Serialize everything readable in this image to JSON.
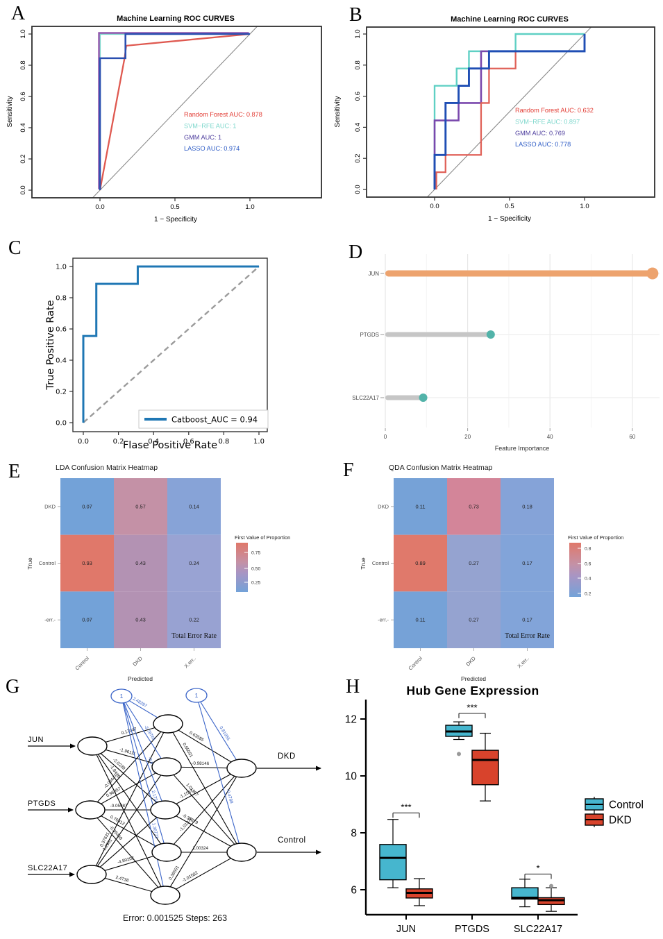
{
  "figure": {
    "background": "#ffffff"
  },
  "chart_data": [
    {
      "panel_letter": "A",
      "type": "line",
      "title": "Machine Learning ROC CURVES",
      "xlabel": "1 − Specificity",
      "ylabel": "Sensitivity",
      "xlim": [
        0,
        1
      ],
      "ylim": [
        0,
        1
      ],
      "xtick_labels": [
        "0.0",
        "0.5",
        "1.0"
      ],
      "ytick_labels": [
        "0.0",
        "0.2",
        "0.4",
        "0.6",
        "0.8",
        "1.0"
      ],
      "diagonal": "solid",
      "series": [
        {
          "name": "SVM-RFE",
          "auc": "1",
          "color": "#7ed7cc",
          "width": 2.2,
          "points": [
            [
              0,
              0
            ],
            [
              0,
              1
            ],
            [
              1,
              1
            ]
          ]
        },
        {
          "name": "GMM",
          "auc": "1",
          "color": "#9356ad",
          "width": 2.4,
          "points": [
            [
              0,
              0
            ],
            [
              0,
              1
            ],
            [
              1,
              1
            ]
          ]
        },
        {
          "name": "Random Forest",
          "auc": "0.878",
          "color": "#df5950",
          "width": 2.3,
          "points": [
            [
              0,
              0
            ],
            [
              0.165,
              0.85
            ],
            [
              0.175,
              0.925
            ],
            [
              1,
              1
            ]
          ]
        },
        {
          "name": "LASSO",
          "auc": "0.974",
          "color": "#2a4fb0",
          "width": 2.6,
          "points": [
            [
              0,
              0
            ],
            [
              0,
              0.845
            ],
            [
              0.17,
              0.845
            ],
            [
              0.17,
              1
            ],
            [
              1,
              1
            ]
          ]
        }
      ],
      "legend": [
        {
          "text": "Random Forest AUC: 0.878",
          "color": "#e23b33"
        },
        {
          "text": "SVM−RFE AUC: 1",
          "color": "#7ed7cc"
        },
        {
          "text": "GMM AUC: 1",
          "color": "#50409f"
        },
        {
          "text": "LASSO AUC: 0.974",
          "color": "#2f5dc6"
        }
      ]
    },
    {
      "panel_letter": "B",
      "type": "line",
      "title": "Machine Learning ROC CURVES",
      "xlabel": "1 − Specificity",
      "ylabel": "Sensitivity",
      "xlim": [
        0,
        1
      ],
      "ylim": [
        0,
        1
      ],
      "xtick_labels": [
        "0.0",
        "0.5",
        "1.0"
      ],
      "ytick_labels": [
        "0.0",
        "0.2",
        "0.4",
        "0.6",
        "0.8",
        "1.0"
      ],
      "diagonal": "solid",
      "series": [
        {
          "name": "SVM-RFE",
          "auc": "0.897",
          "color": "#5fd0c4",
          "width": 2.4,
          "points": [
            [
              0,
              0
            ],
            [
              0,
              0.667
            ],
            [
              0.147,
              0.667
            ],
            [
              0.147,
              0.778
            ],
            [
              0.229,
              0.778
            ],
            [
              0.229,
              0.889
            ],
            [
              0.54,
              0.889
            ],
            [
              0.54,
              1
            ],
            [
              1,
              1
            ]
          ]
        },
        {
          "name": "GMM",
          "auc": "0.769",
          "color": "#7a48ad",
          "width": 2.6,
          "points": [
            [
              0,
              0
            ],
            [
              0,
              0.444
            ],
            [
              0.16,
              0.444
            ],
            [
              0.16,
              0.556
            ],
            [
              0.31,
              0.556
            ],
            [
              0.31,
              0.889
            ],
            [
              0.38,
              0.889
            ]
          ]
        },
        {
          "name": "Random Forest",
          "auc": "0.632",
          "color": "#e06259",
          "width": 2.3,
          "points": [
            [
              0.012,
              0
            ],
            [
              0.012,
              0.111
            ],
            [
              0.073,
              0.111
            ],
            [
              0.073,
              0.222
            ],
            [
              0.31,
              0.222
            ],
            [
              0.31,
              0.556
            ],
            [
              0.363,
              0.556
            ],
            [
              0.363,
              0.778
            ],
            [
              0.54,
              0.778
            ],
            [
              0.54,
              0.889
            ],
            [
              1,
              0.889
            ]
          ]
        },
        {
          "name": "LASSO",
          "auc": "0.778",
          "color": "#1f4eb4",
          "width": 2.9,
          "points": [
            [
              0,
              0
            ],
            [
              0,
              0.222
            ],
            [
              0.073,
              0.222
            ],
            [
              0.073,
              0.556
            ],
            [
              0.16,
              0.556
            ],
            [
              0.16,
              0.667
            ],
            [
              0.229,
              0.667
            ],
            [
              0.229,
              0.778
            ],
            [
              0.363,
              0.778
            ],
            [
              0.363,
              0.889
            ],
            [
              1,
              0.889
            ],
            [
              1,
              1
            ]
          ]
        }
      ],
      "legend": [
        {
          "text": "Random Forest AUC: 0.632",
          "color": "#e23b33"
        },
        {
          "text": "SVM−RFE AUC: 0.897",
          "color": "#7ed7cc"
        },
        {
          "text": "GMM AUC: 0.769",
          "color": "#50409f"
        },
        {
          "text": "LASSO AUC: 0.778",
          "color": "#2f5dc6"
        }
      ]
    },
    {
      "panel_letter": "C",
      "type": "line",
      "title": "",
      "xlabel": "Flase  Positive Rate",
      "ylabel": "True  Positive Rate",
      "xlim": [
        0,
        1
      ],
      "ylim": [
        0,
        1
      ],
      "xtick_labels": [
        "0.0",
        "0.2",
        "0.4",
        "0.6",
        "0.8",
        "1.0"
      ],
      "ytick_labels": [
        "0.0",
        "0.2",
        "0.4",
        "0.6",
        "0.8",
        "1.0"
      ],
      "diagonal": "dashed",
      "series": [
        {
          "name": "Catboost",
          "auc": "0.94",
          "color": "#1f77b4",
          "width": 3,
          "points": [
            [
              0,
              0
            ],
            [
              0,
              0.555
            ],
            [
              0.074,
              0.555
            ],
            [
              0.074,
              0.889
            ],
            [
              0.31,
              0.889
            ],
            [
              0.31,
              1
            ],
            [
              1,
              1
            ]
          ]
        }
      ],
      "legend_label": "Catboost_AUC = 0.94"
    },
    {
      "panel_letter": "D",
      "type": "lollipop",
      "categories": [
        "JUN",
        "PTGDS",
        "SLC22A17"
      ],
      "values": [
        64.9,
        25.6,
        9.2
      ],
      "dot_colors": [
        "#eda36e",
        "#52b3a9",
        "#52b3a9"
      ],
      "bar_colors": [
        "#eda36e",
        "#c6c6c6",
        "#c6c6c6"
      ],
      "xlabel": "Feature Importance",
      "xticks": [
        0,
        20,
        40,
        60
      ],
      "xtick_labels": [
        "0",
        "20",
        "40",
        "60"
      ]
    },
    {
      "panel_letter": "E",
      "type": "heatmap",
      "title": "LDA Confusion Matrix Heatmap",
      "xlabel": "Predicted",
      "ylabel": "True",
      "rows": [
        "DKD",
        "Control",
        "-err.-"
      ],
      "cols": [
        "Control",
        "DKD",
        "X.err.."
      ],
      "values": [
        [
          "0.07",
          "0.57",
          "0.14"
        ],
        [
          "0.93",
          "0.43",
          "0.24"
        ],
        [
          "0.07",
          "0.43",
          "0.22"
        ]
      ],
      "cell_colors": [
        [
          "#73a2d8",
          "#c491a6",
          "#87a3d7"
        ],
        [
          "#e0786a",
          "#b392b3",
          "#99a3d3"
        ],
        [
          "#73a2d8",
          "#b392b3",
          "#98a2d2"
        ]
      ],
      "corner_note": "Total Error Rate",
      "legend": {
        "title": "First Value of Proportion",
        "ticks": [
          "0.75",
          "0.50",
          "0.25"
        ],
        "gradient": [
          "#e0786a",
          "#c491a6",
          "#a795c4",
          "#73a2d8"
        ]
      }
    },
    {
      "panel_letter": "F",
      "type": "heatmap",
      "title": "QDA Confusion Matrix Heatmap",
      "xlabel": "Predicted",
      "ylabel": "True",
      "rows": [
        "DKD",
        "Control",
        "-err.-"
      ],
      "cols": [
        "Control",
        "DKD",
        "X.err.."
      ],
      "values": [
        [
          "0.11",
          "0.73",
          "0.18"
        ],
        [
          "0.89",
          "0.27",
          "0.17"
        ],
        [
          "0.11",
          "0.27",
          "0.17"
        ]
      ],
      "cell_colors": [
        [
          "#76a2d7",
          "#d38599",
          "#85a3d8"
        ],
        [
          "#e0796b",
          "#95a3d0",
          "#82a4d9"
        ],
        [
          "#76a2d7",
          "#95a3d0",
          "#82a4d9"
        ]
      ],
      "corner_note": "Total Error Rate",
      "legend": {
        "title": "First Value of Proportion",
        "ticks": [
          "0.8",
          "0.6",
          "0.4",
          "0.2"
        ],
        "gradient": [
          "#e0786a",
          "#c491a6",
          "#a795c4",
          "#73a2d8"
        ]
      }
    },
    {
      "panel_letter": "G",
      "type": "network",
      "inputs": [
        "JUN",
        "PTGDS",
        "SLC22A17"
      ],
      "outputs": [
        "DKD",
        "Control"
      ],
      "hidden_count": 5,
      "bias_label": "1",
      "weights_input_hidden": [
        [
          "0.17047",
          "-1.96111",
          "-2.0239",
          "-1.8446",
          ""
        ],
        [
          "-0.08447",
          "0.98957",
          "-0.05987",
          "0.76912",
          "-0.95448"
        ],
        [
          "0.37631",
          "-1.2901",
          "",
          "-4.80202",
          "2.4738"
        ]
      ],
      "weights_hidden_output": [
        [
          "0.63585",
          "0.65031"
        ],
        [
          "-0.98146",
          "1.01997"
        ],
        [
          "-1.1557",
          "-0.35879"
        ],
        [
          "-1.01376",
          "1.00324"
        ],
        [
          "0.36501",
          "-1.01582"
        ]
      ],
      "weights_bias_hidden": [
        "2.48397",
        "-3.78765",
        "-0.67379",
        "2.17509",
        "1.36773"
      ],
      "weights_bias_output": [
        "0.81955",
        "-0.4788"
      ],
      "footer": "Error: 0.001525   Steps: 263",
      "edge_color": "#000000",
      "bias_color": "#3a64c8"
    },
    {
      "panel_letter": "H",
      "type": "boxplot",
      "title": "Hub Gene Expression",
      "categories": [
        "JUN",
        "PTGDS",
        "SLC22A17"
      ],
      "ytick_labels": [
        "6",
        "8",
        "10",
        "12"
      ],
      "yticks": [
        6,
        8,
        10,
        12
      ],
      "groups": [
        {
          "name": "Control",
          "color": "#46b6ce"
        },
        {
          "name": "DKD",
          "color": "#d8432c"
        }
      ],
      "boxes": [
        {
          "gene": "JUN",
          "group": "Control",
          "whislo": 6.07,
          "q1": 6.35,
          "med": 7.12,
          "q3": 7.59,
          "whishi": 8.47,
          "outliers": []
        },
        {
          "gene": "JUN",
          "group": "DKD",
          "whislo": 5.44,
          "q1": 5.71,
          "med": 5.89,
          "q3": 6.03,
          "whishi": 6.39,
          "outliers": []
        },
        {
          "gene": "PTGDS",
          "group": "Control",
          "whislo": 11.28,
          "q1": 11.39,
          "med": 11.56,
          "q3": 11.78,
          "whishi": 11.9,
          "outliers": [
            10.77
          ]
        },
        {
          "gene": "PTGDS",
          "group": "DKD",
          "whislo": 9.12,
          "q1": 9.69,
          "med": 10.56,
          "q3": 10.9,
          "whishi": 11.5,
          "outliers": []
        },
        {
          "gene": "SLC22A17",
          "group": "Control",
          "whislo": 5.4,
          "q1": 5.67,
          "med": 5.72,
          "q3": 6.07,
          "whishi": 6.37,
          "outliers": []
        },
        {
          "gene": "SLC22A17",
          "group": "DKD",
          "whislo": 5.24,
          "q1": 5.48,
          "med": 5.63,
          "q3": 5.72,
          "whishi": 6.07,
          "outliers": [
            6.13
          ]
        }
      ],
      "significance": [
        {
          "gene": "JUN",
          "label": "***",
          "y": 8.7
        },
        {
          "gene": "PTGDS",
          "label": "***",
          "y": 12.2
        },
        {
          "gene": "SLC22A17",
          "label": "*",
          "y": 6.55
        }
      ]
    }
  ]
}
